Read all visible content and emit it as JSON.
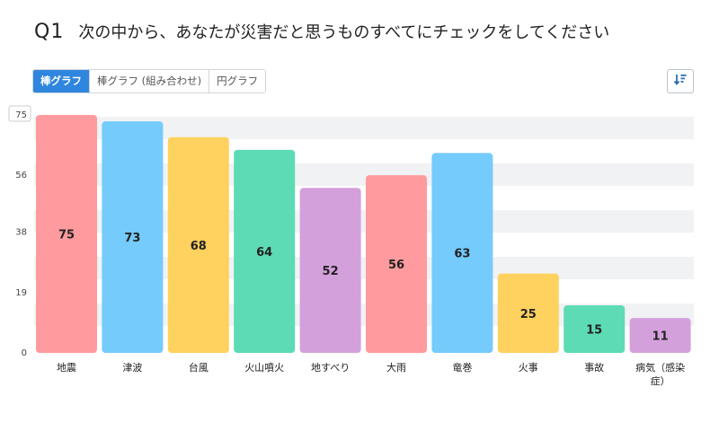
{
  "question": {
    "number": "Q1",
    "text": "次の中から、あなたが災害だと思うものすべてにチェックをしてください"
  },
  "tabs": [
    {
      "label": "棒グラフ",
      "active": true
    },
    {
      "label": "棒グラフ (組み合わせ)",
      "active": false
    },
    {
      "label": "円グラフ",
      "active": false
    }
  ],
  "sort_button": {
    "icon": "sort-descending-icon"
  },
  "chart_data": {
    "type": "bar",
    "categories": [
      "地震",
      "津波",
      "台風",
      "火山噴火",
      "地すべり",
      "大雨",
      "竜巻",
      "火事",
      "事故",
      "病気（感染症）"
    ],
    "category_label_lines": [
      [
        "地震"
      ],
      [
        "津波"
      ],
      [
        "台風"
      ],
      [
        "火山噴火"
      ],
      [
        "地すべり"
      ],
      [
        "大雨"
      ],
      [
        "竜巻"
      ],
      [
        "火事"
      ],
      [
        "事故"
      ],
      [
        "病気（感染",
        "症）"
      ]
    ],
    "values": [
      75,
      73,
      68,
      64,
      52,
      56,
      63,
      25,
      15,
      11
    ],
    "colors": [
      "#ff9a9e",
      "#74cbfc",
      "#ffd15e",
      "#5ddbb4",
      "#d4a0dc",
      "#ff9a9e",
      "#74cbfc",
      "#ffd15e",
      "#5ddbb4",
      "#d4a0dc"
    ],
    "yticks": [
      0,
      19,
      38,
      56,
      75
    ],
    "ylim": [
      0,
      75
    ],
    "grid": "alternating-bands"
  }
}
